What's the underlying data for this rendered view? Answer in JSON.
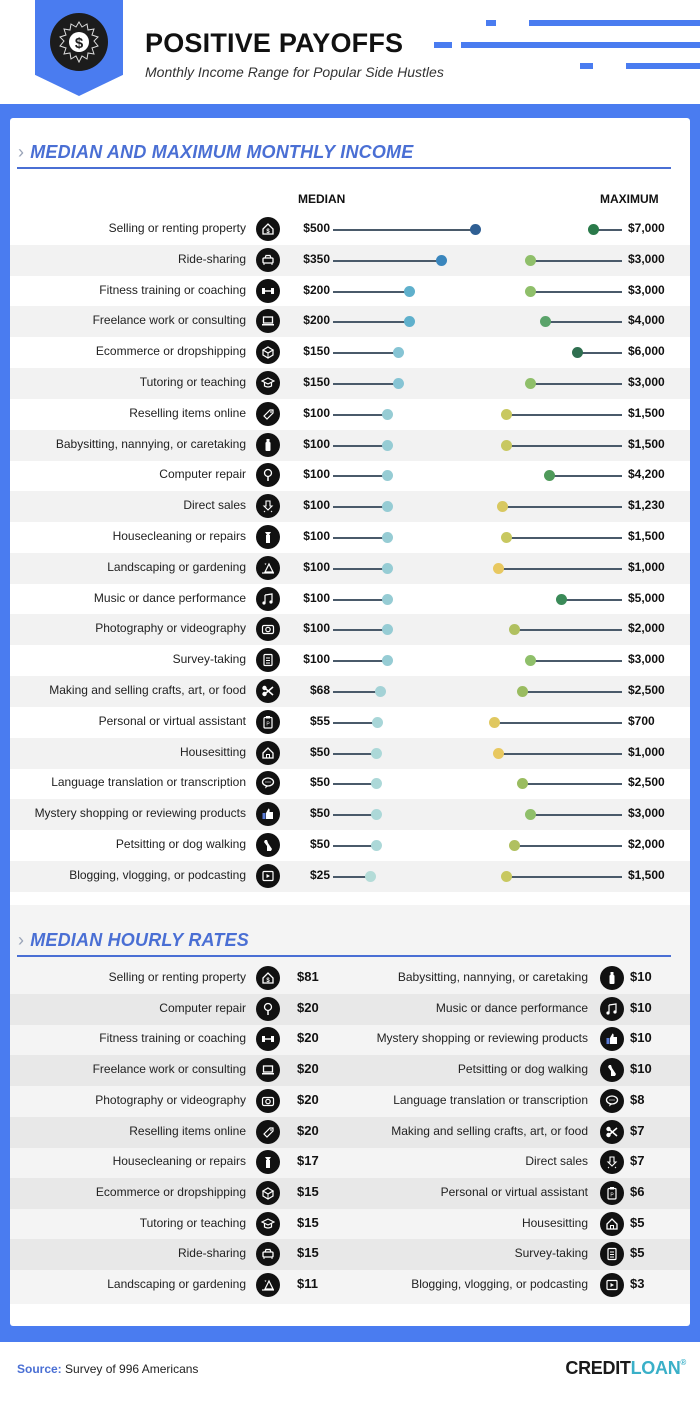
{
  "header": {
    "title": "POSITIVE PAYOFFS",
    "subtitle": "Monthly Income Range for Popular Side Hustles",
    "badge_icon": "dollar-seal-icon",
    "accent_color": "#4a7cf0"
  },
  "section1": {
    "chevron": "›",
    "title": "MEDIAN AND MAXIMUM MONTHLY INCOME",
    "col_median": "MEDIAN",
    "col_maximum": "MAXIMUM"
  },
  "section2": {
    "chevron": "›",
    "title": "MEDIAN HOURLY RATES"
  },
  "footer": {
    "source_label": "Source:",
    "source_text": "Survey of 996 Americans",
    "brand_part1": "CREDIT",
    "brand_part2": "LOAN",
    "brand_reg": "®"
  },
  "chart_data": [
    {
      "type": "dumbbell",
      "title": "MEDIAN AND MAXIMUM MONTHLY INCOME",
      "series": [
        {
          "name": "MEDIAN",
          "values": [
            500,
            350,
            200,
            200,
            150,
            150,
            100,
            100,
            100,
            100,
            100,
            100,
            100,
            100,
            100,
            68,
            55,
            50,
            50,
            50,
            50,
            25
          ]
        },
        {
          "name": "MAXIMUM",
          "values": [
            7000,
            3000,
            3000,
            4000,
            6000,
            3000,
            1500,
            1500,
            4200,
            1230,
            1500,
            1000,
            5000,
            2000,
            3000,
            2500,
            700,
            1000,
            2500,
            3000,
            2000,
            1500
          ]
        }
      ],
      "categories": [
        "Selling or renting property",
        "Ride-sharing",
        "Fitness training or coaching",
        "Freelance work or consulting",
        "Ecommerce or dropshipping",
        "Tutoring or teaching",
        "Reselling items online",
        "Babysitting, nannying, or caretaking",
        "Computer repair",
        "Direct sales",
        "Housecleaning or repairs",
        "Landscaping or gardening",
        "Music or dance performance",
        "Photography or videography",
        "Survey-taking",
        "Making and selling crafts, art, or food",
        "Personal or virtual assistant",
        "Housesitting",
        "Language translation or transcription",
        "Mystery shopping or reviewing products",
        "Petsitting or dog walking",
        "Blogging, vlogging, or podcasting"
      ],
      "rows": [
        {
          "label": "Selling or renting property",
          "icon": "house-dollar-icon",
          "median": "$500",
          "max": "$7,000",
          "mdx": 475,
          "mxx": 593,
          "mc": "#2f5f93",
          "xc": "#2a7a4a"
        },
        {
          "label": "Ride-sharing",
          "icon": "car-icon",
          "median": "$350",
          "max": "$3,000",
          "mdx": 441,
          "mxx": 530,
          "mc": "#3a86bd",
          "xc": "#8fbf6a"
        },
        {
          "label": "Fitness training or coaching",
          "icon": "dumbbell-icon",
          "median": "$200",
          "max": "$3,000",
          "mdx": 409,
          "mxx": 530,
          "mc": "#5fb0cc",
          "xc": "#8fbf6a"
        },
        {
          "label": "Freelance work or consulting",
          "icon": "laptop-icon",
          "median": "$200",
          "max": "$4,000",
          "mdx": 409,
          "mxx": 545,
          "mc": "#5fb0cc",
          "xc": "#5aa36a"
        },
        {
          "label": "Ecommerce or dropshipping",
          "icon": "box-icon",
          "median": "$150",
          "max": "$6,000",
          "mdx": 398,
          "mxx": 577,
          "mc": "#86c4d4",
          "xc": "#2f6f50"
        },
        {
          "label": "Tutoring or teaching",
          "icon": "graduation-cap-icon",
          "median": "$150",
          "max": "$3,000",
          "mdx": 398,
          "mxx": 530,
          "mc": "#86c4d4",
          "xc": "#8fbf6a"
        },
        {
          "label": "Reselling items online",
          "icon": "tag-icon",
          "median": "$100",
          "max": "$1,500",
          "mdx": 387,
          "mxx": 506,
          "mc": "#96ccd4",
          "xc": "#c8c860"
        },
        {
          "label": "Babysitting, nannying, or caretaking",
          "icon": "baby-bottle-icon",
          "median": "$100",
          "max": "$1,500",
          "mdx": 387,
          "mxx": 506,
          "mc": "#96ccd4",
          "xc": "#c8c860"
        },
        {
          "label": "Computer repair",
          "icon": "wrench-icon",
          "median": "$100",
          "max": "$4,200",
          "mdx": 387,
          "mxx": 549,
          "mc": "#96ccd4",
          "xc": "#4f9a5a"
        },
        {
          "label": "Direct sales",
          "icon": "arrow-down-icon",
          "median": "$100",
          "max": "$1,230",
          "mdx": 387,
          "mxx": 502,
          "mc": "#96ccd4",
          "xc": "#d8c860"
        },
        {
          "label": "Housecleaning or repairs",
          "icon": "spray-bottle-icon",
          "median": "$100",
          "max": "$1,500",
          "mdx": 387,
          "mxx": 506,
          "mc": "#96ccd4",
          "xc": "#c8c860"
        },
        {
          "label": "Landscaping or gardening",
          "icon": "tree-icon",
          "median": "$100",
          "max": "$1,000",
          "mdx": 387,
          "mxx": 498,
          "mc": "#96ccd4",
          "xc": "#e8c860"
        },
        {
          "label": "Music or dance performance",
          "icon": "music-note-icon",
          "median": "$100",
          "max": "$5,000",
          "mdx": 387,
          "mxx": 561,
          "mc": "#96ccd4",
          "xc": "#3a8a58"
        },
        {
          "label": "Photography or videography",
          "icon": "camera-icon",
          "median": "$100",
          "max": "$2,000",
          "mdx": 387,
          "mxx": 514,
          "mc": "#96ccd4",
          "xc": "#b0c060"
        },
        {
          "label": "Survey-taking",
          "icon": "document-icon",
          "median": "$100",
          "max": "$3,000",
          "mdx": 387,
          "mxx": 530,
          "mc": "#96ccd4",
          "xc": "#8fbf6a"
        },
        {
          "label": "Making and selling crafts, art, or food",
          "icon": "scissors-icon",
          "median": "$68",
          "max": "$2,500",
          "mdx": 380,
          "mxx": 522,
          "mc": "#a4d2d6",
          "xc": "#9abc60"
        },
        {
          "label": "Personal or virtual assistant",
          "icon": "clipboard-icon",
          "median": "$55",
          "max": "$700",
          "mdx": 377,
          "mxx": 494,
          "mc": "#a8d6d8",
          "xc": "#e0c860"
        },
        {
          "label": "Housesitting",
          "icon": "home-icon",
          "median": "$50",
          "max": "$1,000",
          "mdx": 376,
          "mxx": 498,
          "mc": "#acd8d8",
          "xc": "#e8c860"
        },
        {
          "label": "Language translation or transcription",
          "icon": "speech-bubble-icon",
          "median": "$50",
          "max": "$2,500",
          "mdx": 376,
          "mxx": 522,
          "mc": "#acd8d8",
          "xc": "#9abc60"
        },
        {
          "label": "Mystery shopping or reviewing products",
          "icon": "thumbs-up-icon",
          "median": "$50",
          "max": "$3,000",
          "mdx": 376,
          "mxx": 530,
          "mc": "#acd8d8",
          "xc": "#8fbf6a"
        },
        {
          "label": "Petsitting or dog walking",
          "icon": "dog-icon",
          "median": "$50",
          "max": "$2,000",
          "mdx": 376,
          "mxx": 514,
          "mc": "#acd8d8",
          "xc": "#b0c060"
        },
        {
          "label": "Blogging, vlogging, or podcasting",
          "icon": "video-play-icon",
          "median": "$25",
          "max": "$1,500",
          "mdx": 370,
          "mxx": 506,
          "mc": "#b4dcd8",
          "xc": "#c8c860"
        }
      ]
    },
    {
      "type": "table",
      "title": "MEDIAN HOURLY RATES",
      "categories": [
        "Selling or renting property",
        "Computer repair",
        "Fitness training or coaching",
        "Freelance work or consulting",
        "Photography or videography",
        "Reselling items online",
        "Housecleaning or repairs",
        "Ecommerce or dropshipping",
        "Tutoring or teaching",
        "Ride-sharing",
        "Landscaping or gardening",
        "Babysitting, nannying, or caretaking",
        "Music or dance performance",
        "Mystery shopping or reviewing products",
        "Petsitting or dog walking",
        "Language translation or transcription",
        "Making and selling crafts, art, or food",
        "Direct sales",
        "Personal or virtual assistant",
        "Housesitting",
        "Survey-taking",
        "Blogging, vlogging, or podcasting"
      ],
      "values": [
        81,
        20,
        20,
        20,
        20,
        20,
        17,
        15,
        15,
        15,
        11,
        10,
        10,
        10,
        10,
        8,
        7,
        7,
        6,
        5,
        5,
        3
      ],
      "left": [
        {
          "label": "Selling or renting property",
          "icon": "house-dollar-icon",
          "value": "$81"
        },
        {
          "label": "Computer repair",
          "icon": "wrench-icon",
          "value": "$20"
        },
        {
          "label": "Fitness training or coaching",
          "icon": "dumbbell-icon",
          "value": "$20"
        },
        {
          "label": "Freelance work or consulting",
          "icon": "laptop-icon",
          "value": "$20"
        },
        {
          "label": "Photography or videography",
          "icon": "camera-icon",
          "value": "$20"
        },
        {
          "label": "Reselling items online",
          "icon": "tag-icon",
          "value": "$20"
        },
        {
          "label": "Housecleaning or repairs",
          "icon": "spray-bottle-icon",
          "value": "$17"
        },
        {
          "label": "Ecommerce or dropshipping",
          "icon": "box-icon",
          "value": "$15"
        },
        {
          "label": "Tutoring or teaching",
          "icon": "graduation-cap-icon",
          "value": "$15"
        },
        {
          "label": "Ride-sharing",
          "icon": "car-icon",
          "value": "$15"
        },
        {
          "label": "Landscaping or gardening",
          "icon": "tree-icon",
          "value": "$11"
        }
      ],
      "right": [
        {
          "label": "Babysitting, nannying, or caretaking",
          "icon": "baby-bottle-icon",
          "value": "$10"
        },
        {
          "label": "Music or dance performance",
          "icon": "music-note-icon",
          "value": "$10"
        },
        {
          "label": "Mystery shopping or reviewing products",
          "icon": "thumbs-up-icon",
          "value": "$10"
        },
        {
          "label": "Petsitting or dog walking",
          "icon": "dog-icon",
          "value": "$10"
        },
        {
          "label": "Language translation or transcription",
          "icon": "speech-bubble-icon",
          "value": "$8"
        },
        {
          "label": "Making and selling crafts, art, or food",
          "icon": "scissors-icon",
          "value": "$7"
        },
        {
          "label": "Direct sales",
          "icon": "arrow-down-icon",
          "value": "$7"
        },
        {
          "label": "Personal or virtual assistant",
          "icon": "clipboard-icon",
          "value": "$6"
        },
        {
          "label": "Housesitting",
          "icon": "home-icon",
          "value": "$5"
        },
        {
          "label": "Survey-taking",
          "icon": "document-icon",
          "value": "$5"
        },
        {
          "label": "Blogging, vlogging, or podcasting",
          "icon": "video-play-icon",
          "value": "$3"
        }
      ]
    }
  ]
}
